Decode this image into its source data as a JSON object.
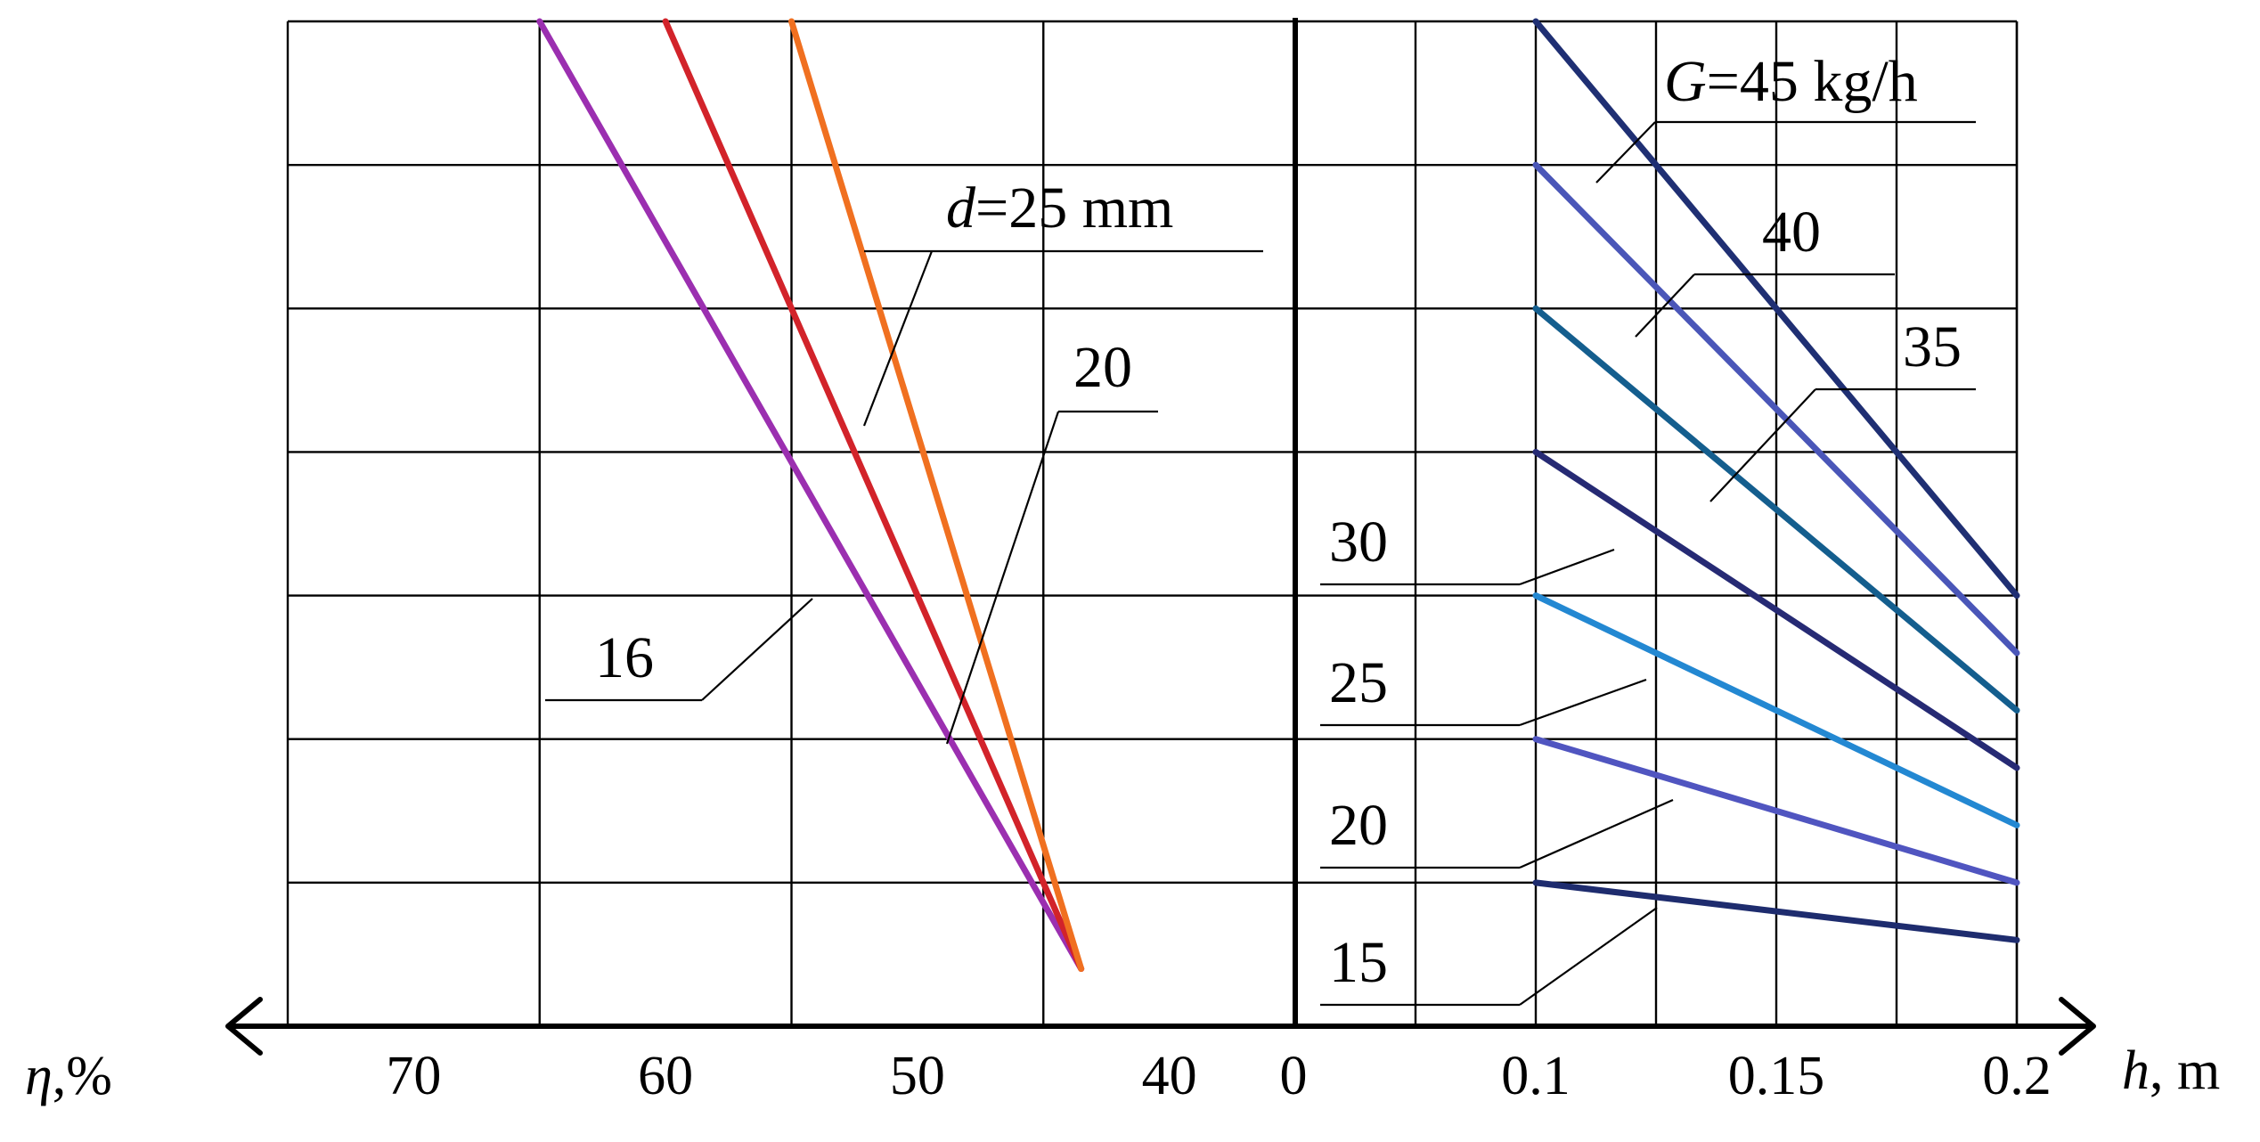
{
  "chart_data": {
    "type": "line",
    "grid": true,
    "left_panel": {
      "xlabel_symbol": "η",
      "xlabel_unit": ",%",
      "x_direction": "reversed",
      "xlim": [
        75,
        35
      ],
      "ticks": [
        {
          "value": 70,
          "label": "70"
        },
        {
          "value": 60,
          "label": "60"
        },
        {
          "value": 50,
          "label": "50"
        },
        {
          "value": 40,
          "label": "40"
        }
      ],
      "series": [
        {
          "name": "d=16 mm",
          "label": "16",
          "color": "#9B2FB0",
          "x": [
            65,
            43.5
          ],
          "y": [
            7,
            0.4
          ]
        },
        {
          "name": "d=20 mm",
          "label": "20",
          "color": "#D2232A",
          "x": [
            60,
            43.5
          ],
          "y": [
            7,
            0.4
          ]
        },
        {
          "name": "d=25 mm",
          "label_prefix": "d",
          "label_rest": "=25 mm",
          "color": "#F07020",
          "x": [
            55,
            43.5
          ],
          "y": [
            7,
            0.4
          ]
        }
      ]
    },
    "right_panel": {
      "xlabel_symbol": "h",
      "xlabel_unit": ", m",
      "xlim": [
        0.05,
        0.2
      ],
      "ticks": [
        {
          "value": 0.1,
          "label": "0.1"
        },
        {
          "value": 0.15,
          "label": "0.15"
        },
        {
          "value": 0.2,
          "label": "0.2"
        }
      ],
      "series": [
        {
          "name": "G=45 kg/h",
          "label_prefix": "G",
          "label_rest": "=45 kg/h",
          "color": "#1F2F73",
          "x": [
            0.1,
            0.2
          ],
          "y": [
            7,
            3
          ]
        },
        {
          "name": "G=40 kg/h",
          "label": "40",
          "color": "#4A56B8",
          "x": [
            0.1,
            0.2
          ],
          "y": [
            6,
            2.6
          ]
        },
        {
          "name": "G=35 kg/h",
          "label": "35",
          "color": "#145E8E",
          "x": [
            0.1,
            0.2
          ],
          "y": [
            5,
            2.2
          ]
        },
        {
          "name": "G=30 kg/h",
          "label": "30",
          "color": "#262A74",
          "x": [
            0.1,
            0.2
          ],
          "y": [
            4,
            1.8
          ]
        },
        {
          "name": "G=25 kg/h",
          "label": "25",
          "color": "#2388D2",
          "x": [
            0.1,
            0.2
          ],
          "y": [
            3,
            1.4
          ]
        },
        {
          "name": "G=20 kg/h",
          "label": "20",
          "color": "#5055C0",
          "x": [
            0.1,
            0.2
          ],
          "y": [
            2,
            1.0
          ]
        },
        {
          "name": "G=15 kg/h",
          "label": "15",
          "color": "#1E2C6E",
          "x": [
            0.1,
            0.2
          ],
          "y": [
            1,
            0.6
          ]
        }
      ]
    },
    "origin_label": "0",
    "ylim": [
      0,
      7
    ]
  }
}
